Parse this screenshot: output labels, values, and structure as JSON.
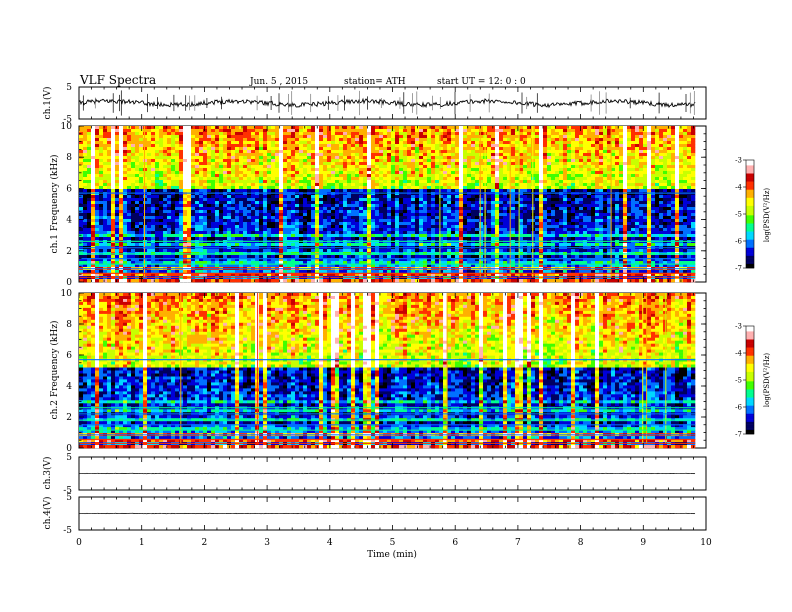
{
  "header": {
    "title": "VLF Spectra",
    "date": "Jun. 5 , 2015",
    "station": "station= ATH",
    "start": "start UT = 12: 0 : 0"
  },
  "chart_data": [
    {
      "type": "line",
      "panel": "ch1-waveform",
      "ylabel": "ch.1(V)",
      "ylim": [
        -5,
        5
      ],
      "yticks": [
        5,
        -5
      ],
      "xlim": [
        0,
        10
      ],
      "xdata_end": 9.83,
      "baseline": 0,
      "series_color": "#000000"
    },
    {
      "type": "heatmap",
      "panel": "ch1-spectrogram",
      "ylabel": "ch.1 Frequency (kHz)",
      "ylim": [
        0,
        10
      ],
      "yticks": [
        0,
        2,
        4,
        6,
        8,
        10
      ],
      "xlim": [
        0,
        10
      ],
      "xdata_end": 9.83,
      "colorbar": {
        "label": "log(PSD(V²/Hz)",
        "range": [
          -7,
          -3
        ],
        "ticks": [
          -3,
          -4,
          -5,
          -6,
          -7
        ]
      },
      "dark_band_khz": [
        3.0,
        6.0
      ]
    },
    {
      "type": "heatmap",
      "panel": "ch2-spectrogram",
      "ylabel": "ch.2 Frequency (kHz)",
      "ylim": [
        0,
        10
      ],
      "yticks": [
        0,
        2,
        4,
        6,
        8,
        10
      ],
      "xlim": [
        0,
        10
      ],
      "xdata_end": 9.83,
      "colorbar": {
        "label": "log(PSD(V²/Hz)",
        "range": [
          -7,
          -3
        ],
        "ticks": [
          -3,
          -4,
          -5,
          -6,
          -7
        ]
      },
      "dark_band_khz": [
        3.2,
        5.2
      ]
    },
    {
      "type": "line",
      "panel": "ch3-waveform",
      "ylabel": "ch.3(V)",
      "ylim": [
        -5,
        5
      ],
      "yticks": [
        5,
        -5
      ],
      "xlim": [
        0,
        10
      ],
      "xdata_end": 9.83,
      "baseline": 0
    },
    {
      "type": "line",
      "panel": "ch4-waveform",
      "ylabel": "ch.4(V)",
      "ylim": [
        -5,
        5
      ],
      "yticks": [
        5,
        -5
      ],
      "xlim": [
        0,
        10
      ],
      "xdata_end": 9.83,
      "baseline": 0,
      "xlabel": "Time (min)",
      "xticks": [
        0,
        1,
        2,
        3,
        4,
        5,
        6,
        7,
        8,
        9,
        10
      ]
    }
  ],
  "colormap": [
    "#000000",
    "#000060",
    "#0000d8",
    "#0070ff",
    "#00d8ff",
    "#00ff90",
    "#40ff00",
    "#c8ff00",
    "#ffff00",
    "#ffb000",
    "#ff3000",
    "#c80000",
    "#ffb0b0",
    "#ffffff"
  ]
}
